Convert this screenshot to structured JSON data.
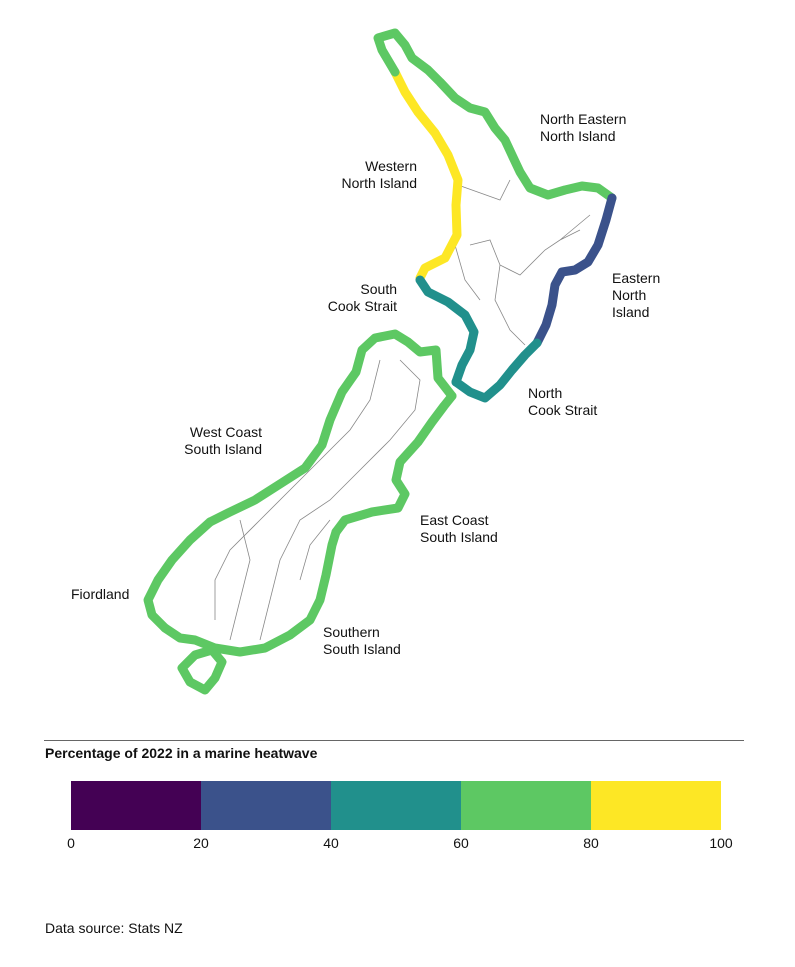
{
  "map": {
    "regions": [
      {
        "id": "western-north-island",
        "label": "Western\nNorth Island",
        "value_bin": "80-100",
        "color": "#fde725"
      },
      {
        "id": "north-eastern-north-island",
        "label": "North Eastern\nNorth Island",
        "value_bin": "60-80",
        "color": "#5dc863"
      },
      {
        "id": "eastern-north-island",
        "label": "Eastern\nNorth\nIsland",
        "value_bin": "20-40",
        "color": "#3b528b"
      },
      {
        "id": "south-cook-strait",
        "label": "South\nCook Strait",
        "value_bin": "40-60",
        "color": "#21908c"
      },
      {
        "id": "north-cook-strait",
        "label": "North\nCook Strait",
        "value_bin": "40-60",
        "color": "#21908c"
      },
      {
        "id": "west-coast-south-island",
        "label": "West Coast\nSouth Island",
        "value_bin": "60-80",
        "color": "#5dc863"
      },
      {
        "id": "east-coast-south-island",
        "label": "East Coast\nSouth Island",
        "value_bin": "60-80",
        "color": "#5dc863"
      },
      {
        "id": "fiordland",
        "label": "Fiordland",
        "value_bin": "60-80",
        "color": "#5dc863"
      },
      {
        "id": "southern-south-island",
        "label": "Southern\nSouth Island",
        "value_bin": "60-80",
        "color": "#5dc863"
      }
    ]
  },
  "legend": {
    "title": "Percentage of 2022 in a marine heatwave",
    "colors": [
      "#440154",
      "#3b528b",
      "#21908c",
      "#5dc863",
      "#fde725"
    ],
    "ticks": [
      "0",
      "20",
      "40",
      "60",
      "80",
      "100"
    ]
  },
  "source": "Data source: Stats NZ"
}
